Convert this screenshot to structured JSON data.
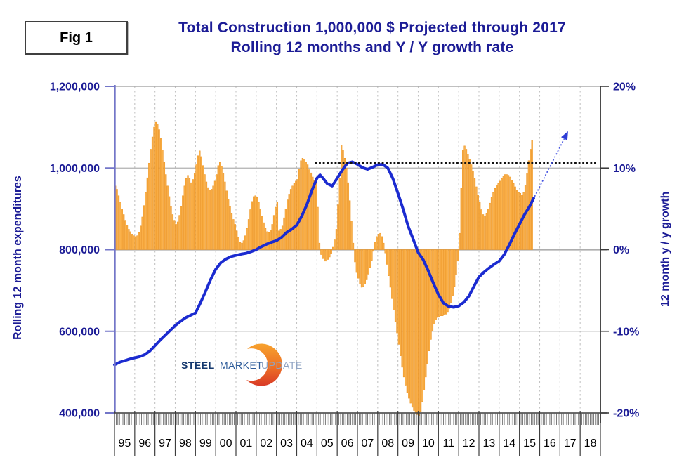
{
  "header": {
    "fig_label": "Fig 1",
    "title_line1": "Total Construction 1,000,000 $ Projected through 2017",
    "title_line2": "Rolling 12 months and Y / Y growth rate"
  },
  "logo": {
    "steel": "STEEL",
    "market": "MARKET",
    "update": "UPDATE"
  },
  "chart_data": {
    "type": "bar",
    "subtype": "combo-bar-line",
    "title": "Total Construction 1,000,000 $ Projected through 2017 — Rolling 12 months and Y / Y growth rate",
    "y_left": {
      "title": "Rolling 12 month expenditures",
      "ticks": [
        "1,200,000",
        "1,000,000",
        "800,000",
        "600,000",
        "400,000"
      ],
      "tick_values": [
        1200000,
        1000000,
        800000,
        600000,
        400000
      ],
      "min": 400000,
      "max": 1200000
    },
    "y_right": {
      "title": "12 month y / y growth",
      "ticks": [
        "20%",
        "10%",
        "0%",
        "-10%",
        "-20%"
      ],
      "tick_values": [
        20,
        10,
        0,
        -10,
        -20
      ],
      "min": -20,
      "max": 20
    },
    "x_years": [
      "95",
      "96",
      "97",
      "98",
      "99",
      "00",
      "01",
      "02",
      "03",
      "04",
      "05",
      "06",
      "07",
      "08",
      "09",
      "10",
      "11",
      "12",
      "13",
      "14",
      "15",
      "16",
      "17",
      "18"
    ],
    "grid": {
      "horizontal": true,
      "vertical_dashed_per_year": true
    },
    "series": [
      {
        "name": "12 month y / y growth (monthly bars)",
        "axis": "right",
        "type": "bar",
        "start_year": 1995,
        "months_per_year": 12,
        "fill": "#FBB24C",
        "edge": "#EE9726",
        "values_pct": [
          7.8,
          7.4,
          6.6,
          5.8,
          5.0,
          4.3,
          3.6,
          3.0,
          2.5,
          2.2,
          1.9,
          1.7,
          1.6,
          1.7,
          2.1,
          2.9,
          4.0,
          5.4,
          7.0,
          8.8,
          10.6,
          12.3,
          13.8,
          15.0,
          15.6,
          15.4,
          14.7,
          13.6,
          12.2,
          10.7,
          9.2,
          7.8,
          6.5,
          5.3,
          4.3,
          3.6,
          3.1,
          3.4,
          4.2,
          5.3,
          6.6,
          7.8,
          8.7,
          9.1,
          8.7,
          8.2,
          8.6,
          9.3,
          10.4,
          11.5,
          12.1,
          11.4,
          10.3,
          9.2,
          8.3,
          7.6,
          7.3,
          7.4,
          7.8,
          8.4,
          9.2,
          10.3,
          10.7,
          10.2,
          9.3,
          8.3,
          7.2,
          6.2,
          5.3,
          4.4,
          3.7,
          3.1,
          2.3,
          1.5,
          0.9,
          0.8,
          1.1,
          1.7,
          2.6,
          3.7,
          4.9,
          5.9,
          6.5,
          6.6,
          6.4,
          5.8,
          5.0,
          4.1,
          3.3,
          2.6,
          2.2,
          2.1,
          2.4,
          3.1,
          4.2,
          5.2,
          5.8,
          2.3,
          2.5,
          2.9,
          3.9,
          5.0,
          6.1,
          6.8,
          7.4,
          7.8,
          8.1,
          8.4,
          8.6,
          9.9,
          10.9,
          11.2,
          11.1,
          10.7,
          10.4,
          9.8,
          9.4,
          8.9,
          8.5,
          8.2,
          5.2,
          0.8,
          -0.6,
          -1.1,
          -1.4,
          -1.4,
          -1.2,
          -0.9,
          -0.5,
          0.3,
          1.2,
          2.5,
          5.5,
          8.7,
          12.8,
          12.2,
          11.2,
          10.0,
          8.2,
          6.0,
          3.5,
          0.8,
          -1.5,
          -2.8,
          -3.5,
          -4.2,
          -4.6,
          -4.5,
          -4.2,
          -3.7,
          -3.0,
          -2.2,
          -1.3,
          -0.2,
          0.9,
          1.6,
          1.9,
          2.0,
          1.6,
          0.8,
          -0.4,
          -1.8,
          -3.2,
          -4.6,
          -6.0,
          -7.4,
          -8.8,
          -10.2,
          -11.6,
          -13.0,
          -14.4,
          -15.6,
          -16.6,
          -17.5,
          -18.2,
          -18.8,
          -19.3,
          -19.7,
          -20.0,
          -20.2,
          -20.4,
          -19.8,
          -18.6,
          -17.2,
          -15.6,
          -14.0,
          -12.4,
          -11.0,
          -9.9,
          -9.1,
          -8.6,
          -8.3,
          -8.2,
          -8.1,
          -8.1,
          -8.0,
          -7.9,
          -7.6,
          -7.2,
          -6.5,
          -5.6,
          -4.5,
          -3.1,
          -1.4,
          2.0,
          7.5,
          12.2,
          12.7,
          12.3,
          11.7,
          11.1,
          10.4,
          9.6,
          8.7,
          7.7,
          6.7,
          5.8,
          4.9,
          4.3,
          4.1,
          4.4,
          5.0,
          5.7,
          6.4,
          7.0,
          7.5,
          7.9,
          8.1,
          8.4,
          8.7,
          9.0,
          9.2,
          9.2,
          9.1,
          8.9,
          8.5,
          8.1,
          7.7,
          7.3,
          7.0,
          6.9,
          6.7,
          7.0,
          7.9,
          9.3,
          10.9,
          12.3,
          13.4
        ]
      },
      {
        "name": "Rolling 12 month expenditures (line)",
        "axis": "left",
        "type": "line",
        "color": "#1b2bd0",
        "points_year_value_thousands": [
          [
            1995,
            518
          ],
          [
            1995.25,
            524
          ],
          [
            1995.5,
            528
          ],
          [
            1995.75,
            532
          ],
          [
            1996,
            535
          ],
          [
            1996.25,
            538
          ],
          [
            1996.5,
            543
          ],
          [
            1996.75,
            552
          ],
          [
            1997,
            565
          ],
          [
            1997.25,
            578
          ],
          [
            1997.5,
            590
          ],
          [
            1997.75,
            602
          ],
          [
            1998,
            614
          ],
          [
            1998.25,
            624
          ],
          [
            1998.5,
            633
          ],
          [
            1998.75,
            639
          ],
          [
            1999,
            645
          ],
          [
            1999.25,
            670
          ],
          [
            1999.5,
            698
          ],
          [
            1999.75,
            727
          ],
          [
            2000,
            752
          ],
          [
            2000.25,
            768
          ],
          [
            2000.5,
            777
          ],
          [
            2000.75,
            783
          ],
          [
            2001,
            786
          ],
          [
            2001.25,
            789
          ],
          [
            2001.5,
            791
          ],
          [
            2001.75,
            795
          ],
          [
            2002,
            800
          ],
          [
            2002.25,
            807
          ],
          [
            2002.5,
            813
          ],
          [
            2002.75,
            818
          ],
          [
            2003,
            822
          ],
          [
            2003.25,
            830
          ],
          [
            2003.5,
            842
          ],
          [
            2003.75,
            850
          ],
          [
            2004,
            860
          ],
          [
            2004.25,
            882
          ],
          [
            2004.5,
            910
          ],
          [
            2004.75,
            945
          ],
          [
            2005,
            975
          ],
          [
            2005.15,
            983
          ],
          [
            2005.3,
            975
          ],
          [
            2005.5,
            962
          ],
          [
            2005.75,
            956
          ],
          [
            2006,
            975
          ],
          [
            2006.25,
            995
          ],
          [
            2006.5,
            1012
          ],
          [
            2006.75,
            1015
          ],
          [
            2007,
            1009
          ],
          [
            2007.25,
            1001
          ],
          [
            2007.5,
            997
          ],
          [
            2007.75,
            1002
          ],
          [
            2008,
            1008
          ],
          [
            2008.25,
            1009
          ],
          [
            2008.5,
            1000
          ],
          [
            2008.75,
            974
          ],
          [
            2009,
            938
          ],
          [
            2009.25,
            900
          ],
          [
            2009.5,
            858
          ],
          [
            2009.75,
            826
          ],
          [
            2010,
            793
          ],
          [
            2010.25,
            775
          ],
          [
            2010.5,
            748
          ],
          [
            2010.75,
            718
          ],
          [
            2011,
            690
          ],
          [
            2011.25,
            669
          ],
          [
            2011.5,
            661
          ],
          [
            2011.75,
            659
          ],
          [
            2012,
            662
          ],
          [
            2012.25,
            671
          ],
          [
            2012.5,
            686
          ],
          [
            2012.75,
            710
          ],
          [
            2013,
            733
          ],
          [
            2013.25,
            745
          ],
          [
            2013.5,
            755
          ],
          [
            2013.75,
            764
          ],
          [
            2014,
            772
          ],
          [
            2014.25,
            788
          ],
          [
            2014.5,
            812
          ],
          [
            2014.75,
            838
          ],
          [
            2015,
            862
          ],
          [
            2015.25,
            886
          ],
          [
            2015.5,
            906
          ],
          [
            2015.7,
            926
          ]
        ]
      }
    ],
    "reference_line": {
      "style": "dotted",
      "color": "#111111",
      "value_left_axis": 1013000,
      "start_year": 2004.9,
      "end_year": 2019.2
    },
    "projection_arrow": {
      "style": "dotted",
      "shaft_color": "#4453e2",
      "head_color": "#2d3cd6",
      "from": [
        2015.75,
        930000
      ],
      "to": [
        2017.4,
        1090000
      ]
    },
    "colors": {
      "title_navy": "#1c1c96",
      "left_axis_line": "#7376c8",
      "grid_gray": "#b0b0b0",
      "axis_dark": "#3c3c3c"
    }
  }
}
